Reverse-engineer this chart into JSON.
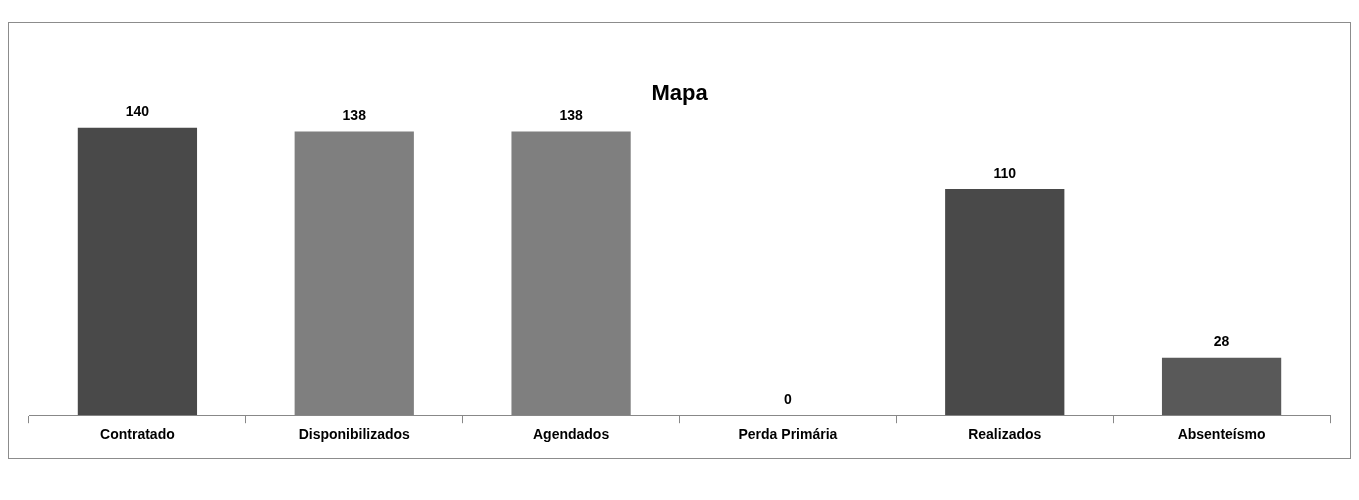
{
  "chart_data": {
    "type": "bar",
    "title": "Mapa",
    "categories": [
      "Contratado",
      "Disponibilizados",
      "Agendados",
      "Perda Primária",
      "Realizados",
      "Absenteísmo"
    ],
    "values": [
      140,
      138,
      138,
      0,
      110,
      28
    ],
    "colors": [
      "#494949",
      "#7f7f7f",
      "#7f7f7f",
      "#7f7f7f",
      "#494949",
      "#595959"
    ],
    "data_labels": true,
    "grid": false,
    "legend": false
  }
}
